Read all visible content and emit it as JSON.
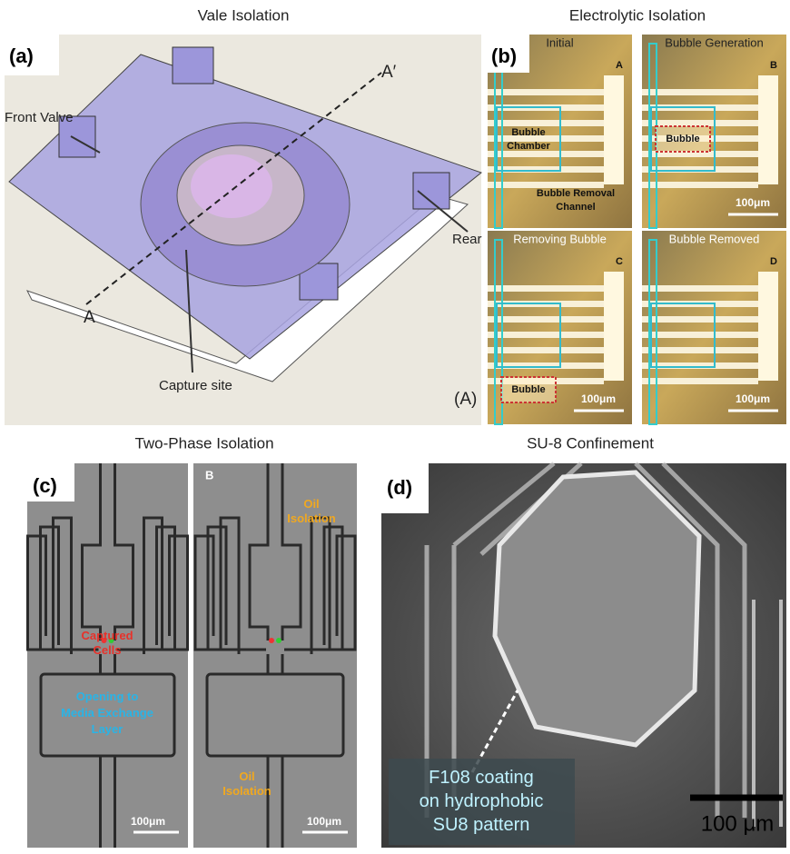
{
  "panel_a": {
    "title": "Vale Isolation",
    "label": "(a)",
    "front_valve": "Front Valve",
    "a_prime": "A′",
    "rear": "Rear",
    "a": "A",
    "capture_site": "Capture site",
    "section": "(A)"
  },
  "panel_b": {
    "title": "Electrolytic Isolation",
    "label": "(b)",
    "subpanels": [
      {
        "caption": "Initial",
        "letter": "A",
        "chamber": [
          "Bubble",
          "Chamber"
        ],
        "channel": [
          "Bubble Removal",
          "Channel"
        ]
      },
      {
        "caption": "Bubble Generation",
        "letter": "B",
        "bubble": "Bubble",
        "scale": "100μm"
      },
      {
        "caption": "Removing Bubble",
        "letter": "C",
        "bubble": "Bubble",
        "scale": "100μm"
      },
      {
        "caption": "Bubble Removed",
        "letter": "D",
        "scale": "100μm"
      }
    ]
  },
  "panel_c": {
    "title": "Two-Phase Isolation",
    "label": "(c)",
    "captured": [
      "Captured",
      "Cells"
    ],
    "opening": [
      "Opening to",
      "Media Exchange",
      "Layer"
    ],
    "scale_left": "100μm",
    "letter": "B",
    "oil_top": [
      "Oil",
      "Isolation"
    ],
    "oil_bottom": [
      "Oil",
      "Isolation"
    ],
    "scale_right": "100μm"
  },
  "panel_d": {
    "title": "SU-8 Confinement",
    "label": "(d)",
    "note": [
      "F108 coating",
      "on hydrophobic",
      "SU8 pattern"
    ],
    "scale": "100 μm"
  }
}
